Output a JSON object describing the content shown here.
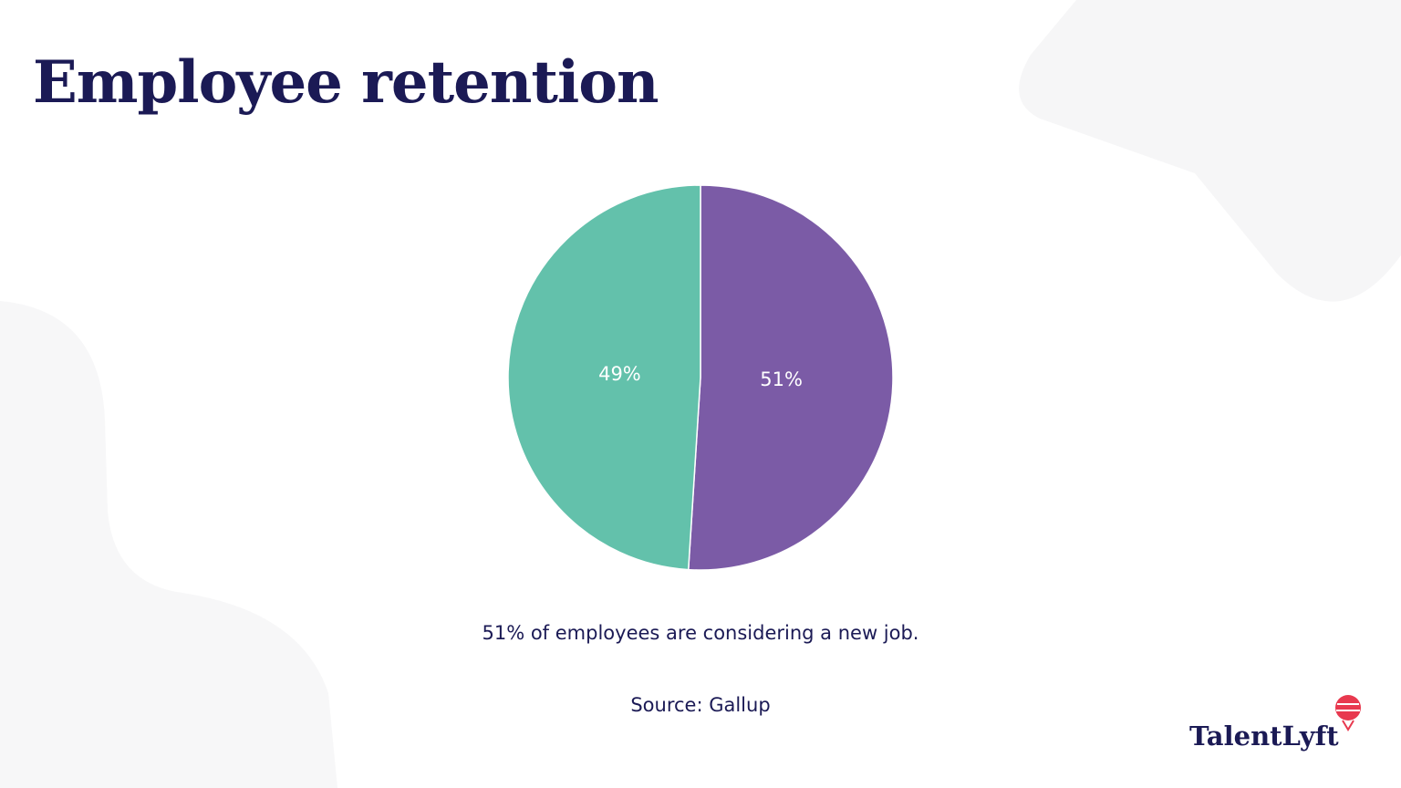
{
  "chart_data": {
    "type": "pie",
    "title": "Employee retention",
    "values": [
      51,
      49
    ],
    "value_labels": [
      "51%",
      "49%"
    ],
    "colors": [
      "#7b5ba6",
      "#63c1ab"
    ],
    "caption": "51% of employees are considering a new job.",
    "source": "Source: Gallup"
  },
  "logo": "TalentLyft"
}
